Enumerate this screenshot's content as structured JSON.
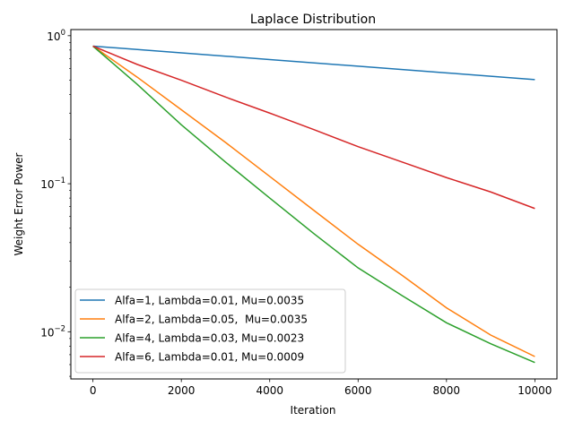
{
  "chart_data": {
    "type": "line",
    "title": "Laplace Distribution",
    "xlabel": "Iteration",
    "ylabel": "Weight Error Power",
    "xlim": [
      -500,
      10500
    ],
    "ylim": [
      0.0048,
      1.1
    ],
    "yscale": "log",
    "x_ticks": [
      0,
      2000,
      4000,
      6000,
      8000,
      10000
    ],
    "x_tick_labels": [
      "0",
      "2000",
      "4000",
      "6000",
      "8000",
      "10000"
    ],
    "y_ticks_major": [
      0.01,
      0.1,
      1
    ],
    "y_tick_base": "10",
    "y_tick_exponents": [
      "−2",
      "−1",
      "0"
    ],
    "legend_position": "lower-left",
    "grid": false,
    "series": [
      {
        "name": "Alfa=1, Lambda=0.01, Mu=0.0035",
        "color": "#1f77b4",
        "x": [
          0,
          2000,
          4000,
          6000,
          8000,
          10000
        ],
        "y": [
          0.85,
          0.766,
          0.69,
          0.622,
          0.561,
          0.505
        ]
      },
      {
        "name": "Alfa=2, Lambda=0.05,  Mu=0.0035",
        "color": "#ff7f0e",
        "x": [
          0,
          1000,
          2000,
          3000,
          4000,
          5000,
          6000,
          7000,
          8000,
          9000,
          10000
        ],
        "y": [
          0.85,
          0.525,
          0.316,
          0.19,
          0.112,
          0.066,
          0.039,
          0.024,
          0.0145,
          0.0095,
          0.0068
        ]
      },
      {
        "name": "Alfa=4, Lambda=0.03, Mu=0.0023",
        "color": "#2ca02c",
        "x": [
          0,
          1000,
          2000,
          3000,
          4000,
          5000,
          6000,
          7000,
          8000,
          9000,
          10000
        ],
        "y": [
          0.85,
          0.47,
          0.25,
          0.14,
          0.08,
          0.046,
          0.027,
          0.0175,
          0.0115,
          0.0083,
          0.0062
        ]
      },
      {
        "name": "Alfa=6, Lambda=0.01, Mu=0.0009",
        "color": "#d62728",
        "x": [
          0,
          1000,
          2000,
          3000,
          4000,
          5000,
          6000,
          7000,
          8000,
          9000,
          10000
        ],
        "y": [
          0.85,
          0.64,
          0.5,
          0.385,
          0.3,
          0.232,
          0.178,
          0.14,
          0.11,
          0.088,
          0.068
        ]
      }
    ]
  }
}
